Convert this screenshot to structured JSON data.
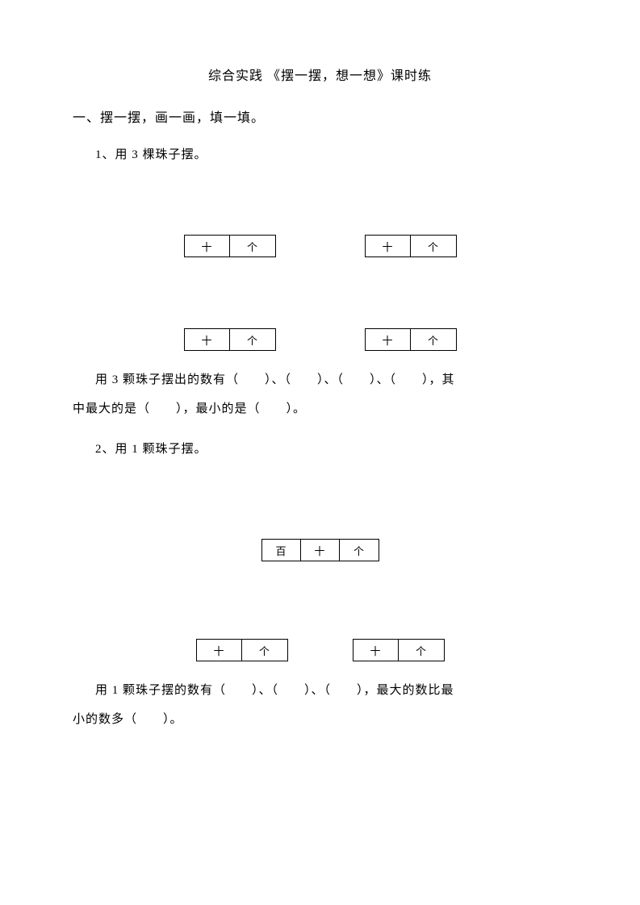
{
  "title": "综合实践 《摆一摆，想一想》课时练",
  "section1": {
    "heading": "一、摆一摆，画一画，填一填。",
    "q1": {
      "heading": "1、用 3 棵珠子摆。",
      "abacus_labels": {
        "tens": "十",
        "ones": "个"
      },
      "fill_line1": "用 3 颗珠子摆出的数有（　　）、（　　）、（　　）、（　　），其",
      "fill_line2": "中最大的是（　　），最小的是（　　）。"
    },
    "q2": {
      "heading": "2、用 1 颗珠子摆。",
      "abacus_labels": {
        "hundreds": "百",
        "tens": "十",
        "ones": "个"
      },
      "fill_line1": "用 1 颗珠子摆的数有（　　）、（　　）、（　　），最大的数比最",
      "fill_line2": "小的数多（　　）。"
    }
  },
  "colors": {
    "text": "#000000",
    "background": "#ffffff",
    "border": "#000000"
  },
  "font_sizes": {
    "title": 16,
    "body": 15,
    "cell": 13
  }
}
